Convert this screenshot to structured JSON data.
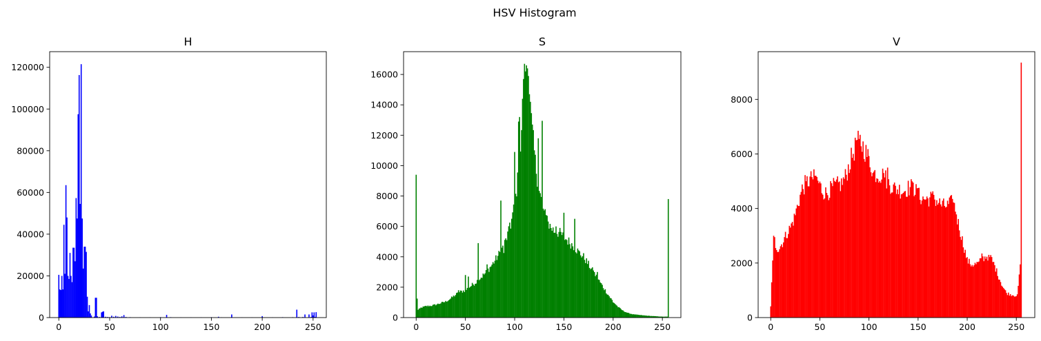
{
  "figure": {
    "title": "HSV Histogram"
  },
  "chart_data": [
    {
      "type": "bar",
      "title": "H",
      "color": "#0000ff",
      "xlim": [
        -9,
        263
      ],
      "ylim": [
        0,
        127500
      ],
      "xticks": [
        0,
        50,
        100,
        150,
        200,
        250
      ],
      "yticks": [
        0,
        20000,
        40000,
        60000,
        80000,
        100000,
        120000
      ],
      "values": [
        [
          0,
          20500
        ],
        [
          1,
          13500
        ],
        [
          2,
          13200
        ],
        [
          3,
          20000
        ],
        [
          4,
          13500
        ],
        [
          5,
          44500
        ],
        [
          6,
          21000
        ],
        [
          7,
          63500
        ],
        [
          8,
          48000
        ],
        [
          9,
          20000
        ],
        [
          10,
          18500
        ],
        [
          11,
          31000
        ],
        [
          12,
          20000
        ],
        [
          13,
          17000
        ],
        [
          14,
          33500
        ],
        [
          15,
          33500
        ],
        [
          16,
          27000
        ],
        [
          17,
          57300
        ],
        [
          18,
          47500
        ],
        [
          19,
          97500
        ],
        [
          20,
          116300
        ],
        [
          21,
          54500
        ],
        [
          22,
          121500
        ],
        [
          23,
          47500
        ],
        [
          24,
          23500
        ],
        [
          25,
          34000
        ],
        [
          26,
          34000
        ],
        [
          27,
          31500
        ],
        [
          28,
          10000
        ],
        [
          29,
          3000
        ],
        [
          30,
          6000
        ],
        [
          31,
          2000
        ],
        [
          32,
          1000
        ],
        [
          35,
          500
        ],
        [
          36,
          9500
        ],
        [
          37,
          9500
        ],
        [
          38,
          600
        ],
        [
          40,
          300
        ],
        [
          42,
          2500
        ],
        [
          43,
          2800
        ],
        [
          44,
          3000
        ],
        [
          46,
          400
        ],
        [
          48,
          300
        ],
        [
          50,
          200
        ],
        [
          52,
          900
        ],
        [
          54,
          400
        ],
        [
          56,
          800
        ],
        [
          58,
          500
        ],
        [
          60,
          300
        ],
        [
          62,
          600
        ],
        [
          64,
          1200
        ],
        [
          66,
          300
        ],
        [
          70,
          200
        ],
        [
          80,
          150
        ],
        [
          90,
          150
        ],
        [
          100,
          200
        ],
        [
          106,
          1300
        ],
        [
          110,
          200
        ],
        [
          120,
          150
        ],
        [
          130,
          150
        ],
        [
          140,
          150
        ],
        [
          150,
          200
        ],
        [
          157,
          400
        ],
        [
          160,
          150
        ],
        [
          170,
          1500
        ],
        [
          180,
          150
        ],
        [
          190,
          150
        ],
        [
          200,
          700
        ],
        [
          210,
          150
        ],
        [
          220,
          200
        ],
        [
          230,
          200
        ],
        [
          234,
          3800
        ],
        [
          236,
          300
        ],
        [
          240,
          300
        ],
        [
          242,
          1500
        ],
        [
          246,
          1500
        ],
        [
          248,
          300
        ],
        [
          249,
          2500
        ],
        [
          250,
          1000
        ],
        [
          251,
          2500
        ],
        [
          252,
          300
        ],
        [
          253,
          2600
        ]
      ]
    },
    {
      "type": "bar",
      "title": "S",
      "color": "#008000",
      "xlim": [
        -12.8,
        268.8
      ],
      "ylim": [
        0,
        17500
      ],
      "xticks": [
        0,
        50,
        100,
        150,
        200,
        250
      ],
      "yticks": [
        0,
        2000,
        4000,
        6000,
        8000,
        10000,
        12000,
        14000,
        16000
      ],
      "points": [
        [
          0,
          400
        ],
        [
          5,
          650
        ],
        [
          10,
          750
        ],
        [
          15,
          780
        ],
        [
          20,
          850
        ],
        [
          25,
          950
        ],
        [
          30,
          1050
        ],
        [
          35,
          1250
        ],
        [
          40,
          1500
        ],
        [
          45,
          1700
        ],
        [
          50,
          1800
        ],
        [
          55,
          2050
        ],
        [
          60,
          2300
        ],
        [
          65,
          2600
        ],
        [
          70,
          2900
        ],
        [
          75,
          3300
        ],
        [
          80,
          3750
        ],
        [
          85,
          4250
        ],
        [
          90,
          4900
        ],
        [
          95,
          5800
        ],
        [
          100,
          7400
        ],
        [
          103,
          9000
        ],
        [
          106,
          11000
        ],
        [
          109,
          13500
        ],
        [
          112,
          15000
        ],
        [
          115,
          14200
        ],
        [
          118,
          12200
        ],
        [
          121,
          10200
        ],
        [
          125,
          8300
        ],
        [
          130,
          6900
        ],
        [
          135,
          6100
        ],
        [
          140,
          5700
        ],
        [
          145,
          5600
        ],
        [
          150,
          5300
        ],
        [
          155,
          5000
        ],
        [
          160,
          4700
        ],
        [
          165,
          4300
        ],
        [
          170,
          4000
        ],
        [
          175,
          3500
        ],
        [
          180,
          3000
        ],
        [
          185,
          2500
        ],
        [
          190,
          2000
        ],
        [
          195,
          1500
        ],
        [
          200,
          1050
        ],
        [
          205,
          700
        ],
        [
          210,
          450
        ],
        [
          215,
          300
        ],
        [
          220,
          220
        ],
        [
          225,
          180
        ],
        [
          230,
          150
        ],
        [
          235,
          120
        ],
        [
          240,
          100
        ],
        [
          245,
          80
        ],
        [
          250,
          60
        ],
        [
          255,
          60
        ]
      ],
      "spikes": [
        [
          0,
          9400
        ],
        [
          1,
          1250
        ],
        [
          43,
          1800
        ],
        [
          50,
          2800
        ],
        [
          53,
          2700
        ],
        [
          63,
          4900
        ],
        [
          72,
          3500
        ],
        [
          86,
          7700
        ],
        [
          89,
          4250
        ],
        [
          95,
          6250
        ],
        [
          100,
          10900
        ],
        [
          104,
          12900
        ],
        [
          105,
          13200
        ],
        [
          108,
          14400
        ],
        [
          109,
          15700
        ],
        [
          110,
          16700
        ],
        [
          111,
          16200
        ],
        [
          112,
          16600
        ],
        [
          113,
          16400
        ],
        [
          114,
          15900
        ],
        [
          115,
          14700
        ],
        [
          116,
          14200
        ],
        [
          124,
          11800
        ],
        [
          128,
          12950
        ],
        [
          133,
          6700
        ],
        [
          142,
          6000
        ],
        [
          146,
          5900
        ],
        [
          150,
          6900
        ],
        [
          161,
          6500
        ],
        [
          180,
          3100
        ],
        [
          184,
          3000
        ],
        [
          200,
          1000
        ],
        [
          256,
          7800
        ]
      ]
    },
    {
      "type": "bar",
      "title": "V",
      "color": "#ff0000",
      "xlim": [
        -12.8,
        268.8
      ],
      "ylim": [
        0,
        9750
      ],
      "xticks": [
        0,
        50,
        100,
        150,
        200,
        250
      ],
      "yticks": [
        0,
        2000,
        4000,
        6000,
        8000
      ],
      "points": [
        [
          0,
          400
        ],
        [
          1,
          1350
        ],
        [
          2,
          2000
        ],
        [
          3,
          2550
        ],
        [
          5,
          2650
        ],
        [
          8,
          2500
        ],
        [
          12,
          2750
        ],
        [
          16,
          3050
        ],
        [
          20,
          3300
        ],
        [
          24,
          3650
        ],
        [
          28,
          4200
        ],
        [
          32,
          4700
        ],
        [
          36,
          4950
        ],
        [
          40,
          5050
        ],
        [
          44,
          5100
        ],
        [
          48,
          5000
        ],
        [
          52,
          4700
        ],
        [
          56,
          4550
        ],
        [
          60,
          4650
        ],
        [
          64,
          4800
        ],
        [
          68,
          4850
        ],
        [
          72,
          4900
        ],
        [
          76,
          5150
        ],
        [
          80,
          5600
        ],
        [
          84,
          6050
        ],
        [
          88,
          6400
        ],
        [
          91,
          6450
        ],
        [
          95,
          6200
        ],
        [
          100,
          5800
        ],
        [
          105,
          5300
        ],
        [
          110,
          5250
        ],
        [
          115,
          5200
        ],
        [
          120,
          4950
        ],
        [
          125,
          4750
        ],
        [
          130,
          4700
        ],
        [
          135,
          4650
        ],
        [
          140,
          4750
        ],
        [
          145,
          4800
        ],
        [
          150,
          4500
        ],
        [
          155,
          4350
        ],
        [
          160,
          4350
        ],
        [
          165,
          4400
        ],
        [
          170,
          4250
        ],
        [
          175,
          4100
        ],
        [
          180,
          4100
        ],
        [
          185,
          4250
        ],
        [
          188,
          4000
        ],
        [
          190,
          3600
        ],
        [
          193,
          3150
        ],
        [
          196,
          2700
        ],
        [
          200,
          2100
        ],
        [
          204,
          1950
        ],
        [
          208,
          1950
        ],
        [
          212,
          2000
        ],
        [
          215,
          2150
        ],
        [
          220,
          2250
        ],
        [
          224,
          2200
        ],
        [
          228,
          1900
        ],
        [
          232,
          1500
        ],
        [
          236,
          1150
        ],
        [
          240,
          900
        ],
        [
          244,
          850
        ],
        [
          248,
          820
        ],
        [
          251,
          800
        ],
        [
          253,
          1500
        ]
      ],
      "spikes": [
        [
          3,
          3000
        ],
        [
          4,
          2950
        ],
        [
          36,
          5000
        ],
        [
          42,
          5150
        ],
        [
          46,
          5200
        ],
        [
          87,
          6500
        ],
        [
          90,
          6550
        ],
        [
          104,
          5300
        ],
        [
          115,
          5300
        ],
        [
          119,
          5500
        ],
        [
          145,
          4950
        ],
        [
          150,
          4750
        ],
        [
          166,
          4500
        ],
        [
          185,
          4350
        ],
        [
          215,
          2350
        ],
        [
          222,
          2300
        ],
        [
          254,
          1950
        ],
        [
          255,
          9350
        ]
      ]
    }
  ]
}
